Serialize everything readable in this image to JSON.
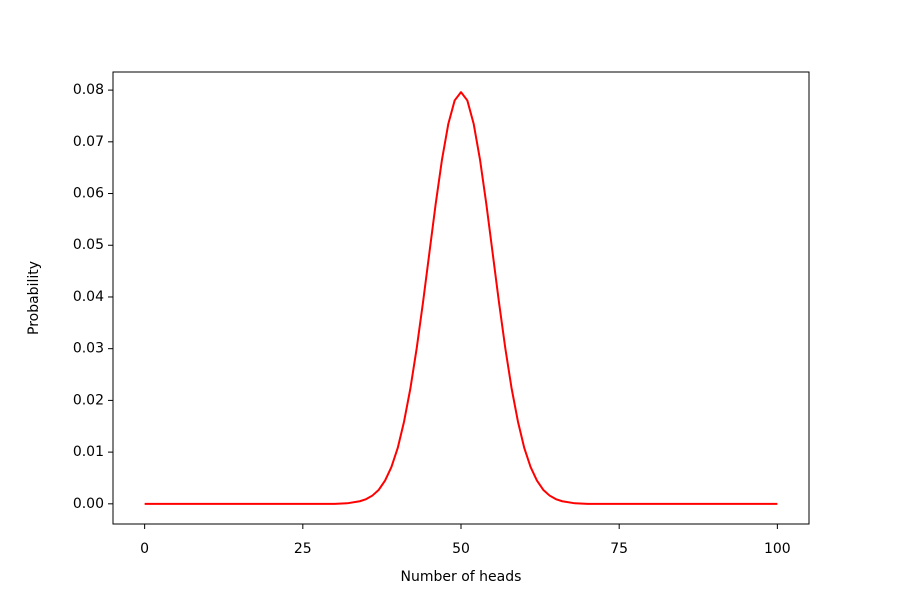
{
  "chart_data": {
    "type": "line",
    "x_label": "Number of heads",
    "y_label": "Probability",
    "x": [
      0,
      10,
      20,
      30,
      32,
      34,
      35,
      36,
      37,
      38,
      39,
      40,
      41,
      42,
      43,
      44,
      45,
      46,
      47,
      48,
      49,
      50,
      51,
      52,
      53,
      54,
      55,
      56,
      57,
      58,
      59,
      60,
      61,
      62,
      63,
      64,
      65,
      66,
      68,
      70,
      80,
      90,
      100
    ],
    "series": [
      {
        "color": "#ff0000",
        "values": [
          0,
          0,
          0,
          0,
          0.0001,
          0.0005,
          0.0009,
          0.0016,
          0.0027,
          0.0045,
          0.0071,
          0.0108,
          0.0159,
          0.0223,
          0.0301,
          0.039,
          0.0485,
          0.058,
          0.0666,
          0.0735,
          0.078,
          0.0796,
          0.078,
          0.0735,
          0.0666,
          0.058,
          0.0485,
          0.039,
          0.0301,
          0.0223,
          0.0159,
          0.0108,
          0.0071,
          0.0045,
          0.0027,
          0.0016,
          0.0009,
          0.0005,
          0.0001,
          0,
          0,
          0,
          0
        ]
      }
    ],
    "xlim": [
      -5,
      105
    ],
    "xticks": [
      0,
      25,
      50,
      75,
      100
    ],
    "ylim": [
      -0.0039,
      0.0835
    ],
    "yticks": [
      {
        "value": 0,
        "label": "0.00"
      },
      0.01,
      0.02,
      0.03,
      0.04,
      0.05,
      0.06,
      0.07,
      0.08
    ],
    "grid": false
  }
}
